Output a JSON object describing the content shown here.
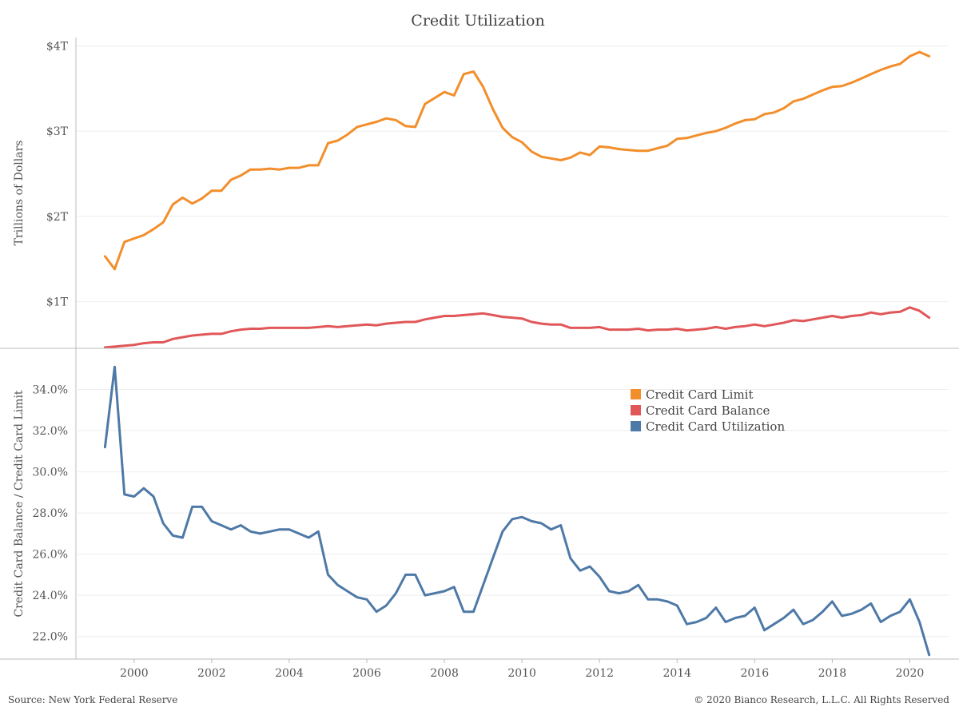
{
  "title": "Credit Utilization",
  "footer": {
    "source": "Source: New York Federal Reserve",
    "copyright": "© 2020 Bianco Research, L.L.C. All Rights Reserved"
  },
  "colors": {
    "limit": "#F28E2B",
    "balance": "#E15759",
    "utilization": "#4E79A7",
    "gridline": "#eeeeee",
    "axis": "#bbbbbb"
  },
  "legend": {
    "items": [
      {
        "label": "Credit Card Limit",
        "color": "#F28E2B"
      },
      {
        "label": "Credit Card Balance",
        "color": "#E15759"
      },
      {
        "label": "Credit Card Utilization",
        "color": "#4E79A7"
      }
    ]
  },
  "chart_data": [
    {
      "type": "line",
      "panel": "top",
      "ylabel": "Trillions of Dollars",
      "ylim": [
        0.45,
        4.1
      ],
      "yticks": [
        1,
        2,
        3,
        4
      ],
      "ytick_labels": [
        "$1T",
        "$2T",
        "$3T",
        "$4T"
      ],
      "xlim": [
        1998.5,
        2021.0
      ],
      "xticks": [
        2000,
        2002,
        2004,
        2006,
        2008,
        2010,
        2012,
        2014,
        2016,
        2018,
        2020
      ],
      "series": [
        {
          "name": "Credit Card Limit",
          "color": "#F28E2B",
          "x": [
            1999.25,
            1999.5,
            1999.75,
            2000.0,
            2000.25,
            2000.5,
            2000.75,
            2001.0,
            2001.25,
            2001.5,
            2001.75,
            2002.0,
            2002.25,
            2002.5,
            2002.75,
            2003.0,
            2003.25,
            2003.5,
            2003.75,
            2004.0,
            2004.25,
            2004.5,
            2004.75,
            2005.0,
            2005.25,
            2005.5,
            2005.75,
            2006.0,
            2006.25,
            2006.5,
            2006.75,
            2007.0,
            2007.25,
            2007.5,
            2007.75,
            2008.0,
            2008.25,
            2008.5,
            2008.75,
            2009.0,
            2009.25,
            2009.5,
            2009.75,
            2010.0,
            2010.25,
            2010.5,
            2010.75,
            2011.0,
            2011.25,
            2011.5,
            2011.75,
            2012.0,
            2012.25,
            2012.5,
            2012.75,
            2013.0,
            2013.25,
            2013.5,
            2013.75,
            2014.0,
            2014.25,
            2014.5,
            2014.75,
            2015.0,
            2015.25,
            2015.5,
            2015.75,
            2016.0,
            2016.25,
            2016.5,
            2016.75,
            2017.0,
            2017.25,
            2017.5,
            2017.75,
            2018.0,
            2018.25,
            2018.5,
            2018.75,
            2019.0,
            2019.25,
            2019.5,
            2019.75,
            2020.0,
            2020.25,
            2020.5
          ],
          "values": [
            1.53,
            1.38,
            1.7,
            1.74,
            1.78,
            1.85,
            1.93,
            2.14,
            2.22,
            2.15,
            2.21,
            2.3,
            2.3,
            2.43,
            2.48,
            2.55,
            2.55,
            2.56,
            2.55,
            2.57,
            2.57,
            2.6,
            2.6,
            2.86,
            2.89,
            2.96,
            3.05,
            3.08,
            3.11,
            3.15,
            3.13,
            3.06,
            3.05,
            3.32,
            3.39,
            3.46,
            3.42,
            3.67,
            3.7,
            3.52,
            3.26,
            3.04,
            2.93,
            2.87,
            2.76,
            2.7,
            2.68,
            2.66,
            2.69,
            2.75,
            2.72,
            2.82,
            2.81,
            2.79,
            2.78,
            2.77,
            2.77,
            2.8,
            2.83,
            2.91,
            2.92,
            2.95,
            2.98,
            3.0,
            3.04,
            3.09,
            3.13,
            3.14,
            3.2,
            3.22,
            3.27,
            3.35,
            3.38,
            3.43,
            3.48,
            3.52,
            3.53,
            3.57,
            3.62,
            3.67,
            3.72,
            3.76,
            3.79,
            3.88,
            3.93,
            3.88
          ]
        },
        {
          "name": "Credit Card Balance",
          "color": "#E15759",
          "x": [
            1999.25,
            1999.5,
            1999.75,
            2000.0,
            2000.25,
            2000.5,
            2000.75,
            2001.0,
            2001.25,
            2001.5,
            2001.75,
            2002.0,
            2002.25,
            2002.5,
            2002.75,
            2003.0,
            2003.25,
            2003.5,
            2003.75,
            2004.0,
            2004.25,
            2004.5,
            2004.75,
            2005.0,
            2005.25,
            2005.5,
            2005.75,
            2006.0,
            2006.25,
            2006.5,
            2006.75,
            2007.0,
            2007.25,
            2007.5,
            2007.75,
            2008.0,
            2008.25,
            2008.5,
            2008.75,
            2009.0,
            2009.25,
            2009.5,
            2009.75,
            2010.0,
            2010.25,
            2010.5,
            2010.75,
            2011.0,
            2011.25,
            2011.5,
            2011.75,
            2012.0,
            2012.25,
            2012.5,
            2012.75,
            2013.0,
            2013.25,
            2013.5,
            2013.75,
            2014.0,
            2014.25,
            2014.5,
            2014.75,
            2015.0,
            2015.25,
            2015.5,
            2015.75,
            2016.0,
            2016.25,
            2016.5,
            2016.75,
            2017.0,
            2017.25,
            2017.5,
            2017.75,
            2018.0,
            2018.25,
            2018.5,
            2018.75,
            2019.0,
            2019.25,
            2019.5,
            2019.75,
            2020.0,
            2020.25,
            2020.5
          ],
          "values": [
            0.46,
            0.47,
            0.48,
            0.49,
            0.51,
            0.52,
            0.52,
            0.56,
            0.58,
            0.6,
            0.61,
            0.62,
            0.62,
            0.65,
            0.67,
            0.68,
            0.68,
            0.69,
            0.69,
            0.69,
            0.69,
            0.69,
            0.7,
            0.71,
            0.7,
            0.71,
            0.72,
            0.73,
            0.72,
            0.74,
            0.75,
            0.76,
            0.76,
            0.79,
            0.81,
            0.83,
            0.83,
            0.84,
            0.85,
            0.86,
            0.84,
            0.82,
            0.81,
            0.8,
            0.76,
            0.74,
            0.73,
            0.73,
            0.69,
            0.69,
            0.69,
            0.7,
            0.67,
            0.67,
            0.67,
            0.68,
            0.66,
            0.67,
            0.67,
            0.68,
            0.66,
            0.67,
            0.68,
            0.7,
            0.68,
            0.7,
            0.71,
            0.73,
            0.71,
            0.73,
            0.75,
            0.78,
            0.77,
            0.79,
            0.81,
            0.83,
            0.81,
            0.83,
            0.84,
            0.87,
            0.85,
            0.87,
            0.88,
            0.93,
            0.89,
            0.81
          ]
        }
      ]
    },
    {
      "type": "line",
      "panel": "bottom",
      "ylabel": "Credit Card Balance / Credit Card Limit",
      "ylim": [
        20.9,
        36.0
      ],
      "yticks": [
        22,
        24,
        26,
        28,
        30,
        32,
        34
      ],
      "ytick_labels": [
        "22.0%",
        "24.0%",
        "26.0%",
        "28.0%",
        "30.0%",
        "32.0%",
        "34.0%"
      ],
      "xlim": [
        1998.5,
        2021.0
      ],
      "xticks": [
        2000,
        2002,
        2004,
        2006,
        2008,
        2010,
        2012,
        2014,
        2016,
        2018,
        2020
      ],
      "xtick_labels": [
        "2000",
        "2002",
        "2004",
        "2006",
        "2008",
        "2010",
        "2012",
        "2014",
        "2016",
        "2018",
        "2020"
      ],
      "series": [
        {
          "name": "Credit Card Utilization",
          "color": "#4E79A7",
          "x": [
            1999.25,
            1999.5,
            1999.75,
            2000.0,
            2000.25,
            2000.5,
            2000.75,
            2001.0,
            2001.25,
            2001.5,
            2001.75,
            2002.0,
            2002.25,
            2002.5,
            2002.75,
            2003.0,
            2003.25,
            2003.5,
            2003.75,
            2004.0,
            2004.25,
            2004.5,
            2004.75,
            2005.0,
            2005.25,
            2005.5,
            2005.75,
            2006.0,
            2006.25,
            2006.5,
            2006.75,
            2007.0,
            2007.25,
            2007.5,
            2007.75,
            2008.0,
            2008.25,
            2008.5,
            2008.75,
            2009.0,
            2009.25,
            2009.5,
            2009.75,
            2010.0,
            2010.25,
            2010.5,
            2010.75,
            2011.0,
            2011.25,
            2011.5,
            2011.75,
            2012.0,
            2012.25,
            2012.5,
            2012.75,
            2013.0,
            2013.25,
            2013.5,
            2013.75,
            2014.0,
            2014.25,
            2014.5,
            2014.75,
            2015.0,
            2015.25,
            2015.5,
            2015.75,
            2016.0,
            2016.25,
            2016.5,
            2016.75,
            2017.0,
            2017.25,
            2017.5,
            2017.75,
            2018.0,
            2018.25,
            2018.5,
            2018.75,
            2019.0,
            2019.25,
            2019.5,
            2019.75,
            2020.0,
            2020.25,
            2020.5
          ],
          "values": [
            31.2,
            35.1,
            28.9,
            28.8,
            29.2,
            28.8,
            27.5,
            26.9,
            26.8,
            28.3,
            28.3,
            27.6,
            27.4,
            27.2,
            27.4,
            27.1,
            27.0,
            27.1,
            27.2,
            27.2,
            27.0,
            26.8,
            27.1,
            25.0,
            24.5,
            24.2,
            23.9,
            23.8,
            23.2,
            23.5,
            24.1,
            25.0,
            25.0,
            24.0,
            24.1,
            24.2,
            24.4,
            23.2,
            23.2,
            24.5,
            25.8,
            27.1,
            27.7,
            27.8,
            27.6,
            27.5,
            27.2,
            27.4,
            25.8,
            25.2,
            25.4,
            24.9,
            24.2,
            24.1,
            24.2,
            24.5,
            23.8,
            23.8,
            23.7,
            23.5,
            22.6,
            22.7,
            22.9,
            23.4,
            22.7,
            22.9,
            23.0,
            23.4,
            22.3,
            22.6,
            22.9,
            23.3,
            22.6,
            22.8,
            23.2,
            23.7,
            23.0,
            23.1,
            23.3,
            23.6,
            22.7,
            23.0,
            23.2,
            23.8,
            22.7,
            21.1
          ]
        }
      ]
    }
  ]
}
